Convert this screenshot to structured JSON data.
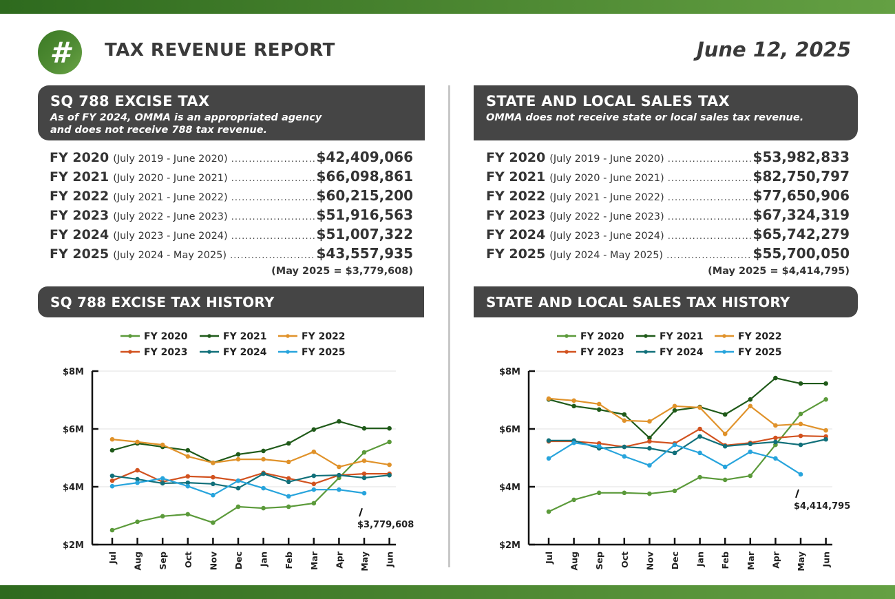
{
  "header": {
    "logo_glyph": "#",
    "logo_icon": "hash-icon",
    "title": "TAX REVENUE REPORT",
    "date": "June 12, 2025"
  },
  "colors": {
    "brand_green": "#4a8530",
    "panel_dark": "#454545",
    "FY 2020": "#5b9a3a",
    "FY 2021": "#1f5a19",
    "FY 2022": "#e0922a",
    "FY 2023": "#d2521f",
    "FY 2024": "#11707a",
    "FY 2025": "#27a4dc"
  },
  "excise": {
    "heading": "SQ 788 EXCISE TAX",
    "sub_line1": "As of FY 2024, OMMA is an appropriated agency",
    "sub_line2": "and does not receive 788 tax revenue.",
    "rows": [
      {
        "fy": "FY 2020",
        "range": "(July 2019 - June 2020)",
        "amount": "$42,409,066"
      },
      {
        "fy": "FY 2021",
        "range": "(July 2020 - June 2021)",
        "amount": "$66,098,861"
      },
      {
        "fy": "FY 2022",
        "range": "(July 2021 - June 2022)",
        "amount": "$60,215,200"
      },
      {
        "fy": "FY 2023",
        "range": "(July 2022 - June 2023)",
        "amount": "$51,916,563"
      },
      {
        "fy": "FY 2024",
        "range": "(July 2023 - June 2024)",
        "amount": "$51,007,322"
      },
      {
        "fy": "FY 2025",
        "range": "(July 2024 - May 2025)",
        "amount": "$43,557,935"
      }
    ],
    "note": "(May 2025 = $3,779,608)",
    "history_heading": "SQ 788 EXCISE TAX HISTORY"
  },
  "sales": {
    "heading": "STATE AND LOCAL SALES TAX",
    "sub_line1": "OMMA does not receive state or local sales tax revenue.",
    "rows": [
      {
        "fy": "FY 2020",
        "range": "(July 2019 - June 2020)",
        "amount": "$53,982,833"
      },
      {
        "fy": "FY 2021",
        "range": "(July 2020 - June 2021)",
        "amount": "$82,750,797"
      },
      {
        "fy": "FY 2022",
        "range": "(July 2021 - June 2022)",
        "amount": "$77,650,906"
      },
      {
        "fy": "FY 2023",
        "range": "(July 2022 - June 2023)",
        "amount": "$67,324,319"
      },
      {
        "fy": "FY 2024",
        "range": "(July 2023 - June 2024)",
        "amount": "$65,742,279"
      },
      {
        "fy": "FY 2025",
        "range": "(July 2024 - May 2025)",
        "amount": "$55,700,050"
      }
    ],
    "note": "(May 2025 = $4,414,795)",
    "history_heading": "STATE AND LOCAL SALES TAX HISTORY"
  },
  "chart_data": [
    {
      "type": "line",
      "title": "SQ 788 EXCISE TAX HISTORY",
      "xlabel": "",
      "ylabel": "",
      "categories": [
        "Jul",
        "Aug",
        "Sep",
        "Oct",
        "Nov",
        "Dec",
        "Jan",
        "Feb",
        "Mar",
        "Apr",
        "May",
        "Jun"
      ],
      "ylim": [
        2,
        8
      ],
      "yticks": [
        2,
        4,
        6,
        8
      ],
      "ytick_labels": [
        "$2M",
        "$4M",
        "$6M",
        "$8M"
      ],
      "grid": true,
      "legend": "top-center",
      "unit": "$M",
      "series": [
        {
          "name": "FY 2020",
          "values": [
            2.5,
            2.79,
            2.98,
            3.05,
            2.76,
            3.31,
            3.26,
            3.31,
            3.43,
            4.31,
            5.19,
            5.55
          ]
        },
        {
          "name": "FY 2021",
          "values": [
            5.26,
            5.5,
            5.38,
            5.26,
            4.83,
            5.12,
            5.24,
            5.5,
            5.98,
            6.26,
            6.02,
            6.02
          ]
        },
        {
          "name": "FY 2022",
          "values": [
            5.64,
            5.55,
            5.45,
            5.05,
            4.83,
            4.95,
            4.95,
            4.86,
            5.21,
            4.69,
            4.9,
            4.76
          ]
        },
        {
          "name": "FY 2023",
          "values": [
            4.21,
            4.57,
            4.17,
            4.36,
            4.33,
            4.21,
            4.48,
            4.29,
            4.1,
            4.4,
            4.45,
            4.45
          ]
        },
        {
          "name": "FY 2024",
          "values": [
            4.38,
            4.26,
            4.12,
            4.14,
            4.1,
            3.95,
            4.45,
            4.17,
            4.38,
            4.4,
            4.31,
            4.4
          ]
        },
        {
          "name": "FY 2025",
          "values": [
            4.02,
            4.14,
            4.29,
            4.02,
            3.71,
            4.21,
            3.95,
            3.67,
            3.9,
            3.9,
            3.78
          ]
        }
      ],
      "annotation": {
        "series": "FY 2025",
        "category": "May",
        "text": "$3,779,608"
      }
    },
    {
      "type": "line",
      "title": "STATE AND LOCAL SALES TAX HISTORY",
      "xlabel": "",
      "ylabel": "",
      "categories": [
        "Jul",
        "Aug",
        "Sep",
        "Oct",
        "Nov",
        "Dec",
        "Jan",
        "Feb",
        "Mar",
        "Apr",
        "May",
        "Jun"
      ],
      "ylim": [
        2,
        8
      ],
      "yticks": [
        2,
        4,
        6,
        8
      ],
      "ytick_labels": [
        "$2M",
        "$4M",
        "$6M",
        "$8M"
      ],
      "grid": true,
      "legend": "top-center",
      "unit": "$M",
      "series": [
        {
          "name": "FY 2020",
          "values": [
            3.14,
            3.55,
            3.79,
            3.79,
            3.76,
            3.86,
            4.33,
            4.24,
            4.38,
            5.45,
            6.52,
            7.02
          ]
        },
        {
          "name": "FY 2021",
          "values": [
            7.02,
            6.79,
            6.67,
            6.5,
            5.69,
            6.64,
            6.76,
            6.5,
            7.02,
            7.76,
            7.57,
            7.57
          ]
        },
        {
          "name": "FY 2022",
          "values": [
            7.05,
            6.98,
            6.86,
            6.29,
            6.26,
            6.79,
            6.74,
            5.83,
            6.79,
            6.12,
            6.17,
            5.95
          ]
        },
        {
          "name": "FY 2023",
          "values": [
            5.57,
            5.57,
            5.5,
            5.38,
            5.57,
            5.5,
            6.0,
            5.43,
            5.52,
            5.69,
            5.76,
            5.74
          ]
        },
        {
          "name": "FY 2024",
          "values": [
            5.6,
            5.6,
            5.33,
            5.38,
            5.33,
            5.17,
            5.74,
            5.4,
            5.48,
            5.55,
            5.45,
            5.64
          ]
        },
        {
          "name": "FY 2025",
          "values": [
            4.98,
            5.52,
            5.4,
            5.05,
            4.74,
            5.45,
            5.17,
            4.69,
            5.21,
            4.98,
            4.43
          ]
        }
      ],
      "annotation": {
        "series": "FY 2025",
        "category": "May",
        "text": "$4,414,795"
      }
    }
  ]
}
